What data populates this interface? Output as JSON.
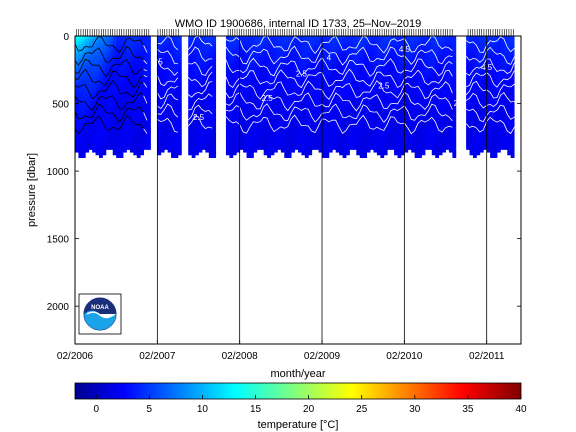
{
  "chart_data": {
    "type": "heatmap",
    "title": "WMO ID 1900686, internal ID 1733, 25–Nov–2019",
    "xlabel": "month/year",
    "ylabel": "pressure [dbar]",
    "x_ticks": [
      "02/2006",
      "02/2007",
      "02/2008",
      "02/2009",
      "02/2010",
      "02/2011"
    ],
    "y_ticks": [
      "0",
      "500",
      "1000",
      "1500",
      "2000"
    ],
    "ylim": [
      2280,
      0
    ],
    "y_reversed": true,
    "grid": "vertical lines at yearly ticks",
    "colorbar": {
      "label": "temperature [°C]",
      "ticks": [
        "0",
        "5",
        "10",
        "15",
        "20",
        "25",
        "30",
        "35",
        "40"
      ],
      "range": [
        -2,
        40
      ],
      "colormap": "jet"
    },
    "contour_labels": [
      "2.5",
      "2.5",
      "2.5",
      "2.5",
      "2.5",
      "2.5",
      "4",
      "4.5",
      "4.5"
    ],
    "profile_depth_dbar": 860,
    "gaps": [
      {
        "from_month": 10.8,
        "to_month": 12.0
      },
      {
        "from_month": 15.2,
        "to_month": 16.4
      },
      {
        "from_month": 20.2,
        "to_month": 22.0
      },
      {
        "from_month": 55.3,
        "to_month": 57.0
      }
    ],
    "surface_warm_period": {
      "from_month": 0,
      "to_month": 6,
      "max_temp_c": 14
    }
  },
  "logo": {
    "text": "NOAA"
  }
}
